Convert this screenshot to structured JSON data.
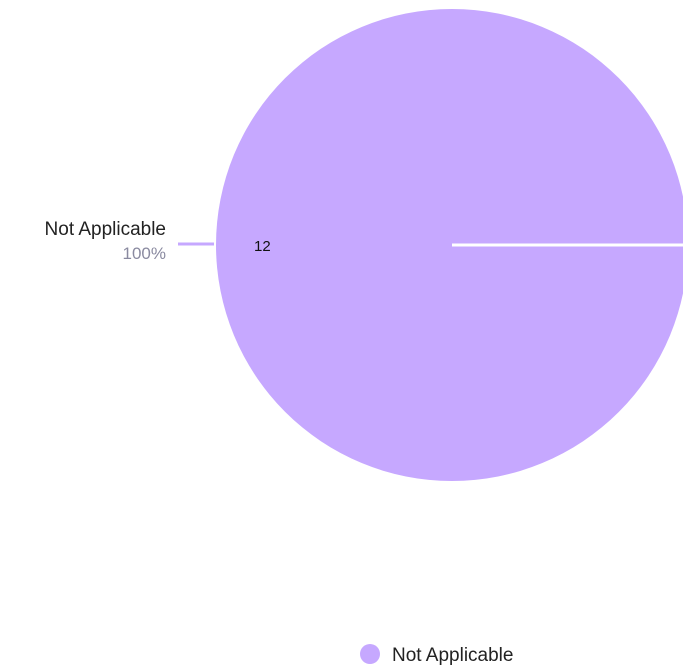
{
  "chart_data": {
    "type": "pie",
    "slices": [
      {
        "label": "Not Applicable",
        "value": 12,
        "percent_label": "100%",
        "color": "#c6a8ff"
      }
    ],
    "legend": {
      "position": "bottom",
      "items": [
        "Not Applicable"
      ]
    }
  }
}
